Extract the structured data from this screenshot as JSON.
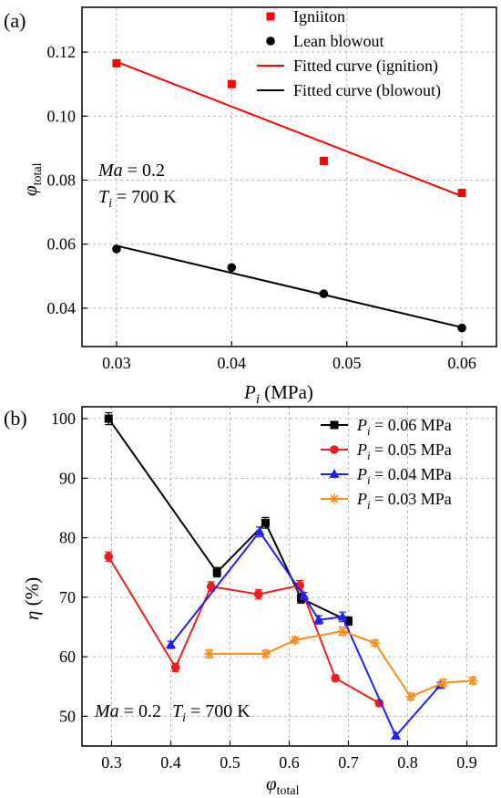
{
  "chart_data": [
    {
      "type": "scatter",
      "panel_label": "(a)",
      "xlabel_main": "P",
      "xlabel_sub": "i",
      "xlabel_unit": " (MPa)",
      "ylabel_main": "φ",
      "ylabel_sub": "total",
      "xlim": [
        0.027,
        0.063
      ],
      "ylim": [
        0.028,
        0.134
      ],
      "xticks": [
        0.03,
        0.04,
        0.05,
        0.06
      ],
      "xtick_labels": [
        "0.03",
        "0.04",
        "0.05",
        "0.06"
      ],
      "yticks": [
        0.04,
        0.06,
        0.08,
        0.1,
        0.12
      ],
      "ytick_labels": [
        "0.04",
        "0.06",
        "0.08",
        "0.10",
        "0.12"
      ],
      "grid": true,
      "legend_position": "top-right",
      "annotation": {
        "line1_var": "Ma",
        "line1_val": " = 0.2",
        "line2_var": "T",
        "line2_sub": "i",
        "line2_val": " = 700 K"
      },
      "series": [
        {
          "name": "Igniiton",
          "kind": "marker",
          "marker": "square",
          "color": "#ff0000",
          "x": [
            0.03,
            0.04,
            0.048,
            0.06
          ],
          "y": [
            0.1165,
            0.11,
            0.086,
            0.076
          ],
          "err": [
            0.0008,
            0.0008,
            0.0008,
            0.0008
          ]
        },
        {
          "name": "Lean blowout",
          "kind": "marker",
          "marker": "circle",
          "color": "#000000",
          "x": [
            0.03,
            0.04,
            0.048,
            0.06
          ],
          "y": [
            0.0585,
            0.0527,
            0.0445,
            0.0338
          ],
          "err": [
            0,
            0,
            0,
            0
          ]
        },
        {
          "name": "Fitted curve (ignition)",
          "kind": "line",
          "color": "#ff0000",
          "x": [
            0.03,
            0.06
          ],
          "y": [
            0.117,
            0.075
          ]
        },
        {
          "name": "Fitted curve (blowout)",
          "kind": "line",
          "color": "#000000",
          "x": [
            0.03,
            0.06
          ],
          "y": [
            0.0595,
            0.034
          ]
        }
      ]
    },
    {
      "type": "line",
      "panel_label": "(b)",
      "xlabel_main": "φ",
      "xlabel_sub": "total",
      "ylabel_main": "η",
      "ylabel_unit": " (%)",
      "xlim": [
        0.25,
        0.95
      ],
      "ylim": [
        45,
        102
      ],
      "xticks": [
        0.3,
        0.4,
        0.5,
        0.6,
        0.7,
        0.8,
        0.9
      ],
      "xtick_labels": [
        "0.3",
        "0.4",
        "0.5",
        "0.6",
        "0.7",
        "0.8",
        "0.9"
      ],
      "yticks": [
        50,
        60,
        70,
        80,
        90,
        100
      ],
      "ytick_labels": [
        "50",
        "60",
        "70",
        "80",
        "90",
        "100"
      ],
      "grid": true,
      "legend_position": "top-right",
      "annotation": {
        "line1_var": "Ma",
        "line1_val": " = 0.2",
        "line2_var": "T",
        "line2_sub": "i",
        "line2_val": " = 700 K"
      },
      "series": [
        {
          "name_var": "P",
          "name_sub": "i",
          "name_val": " = 0.06 MPa",
          "marker": "square",
          "color": "#000000",
          "x": [
            0.295,
            0.478,
            0.56,
            0.62,
            0.7
          ],
          "y": [
            100,
            74.2,
            82.5,
            69.8,
            66
          ],
          "err": [
            1.0,
            0.8,
            0.9,
            0.8,
            0.7
          ]
        },
        {
          "name_var": "P",
          "name_sub": "i",
          "name_val": " = 0.05 MPa",
          "marker": "circle",
          "color": "#ee1c1c",
          "x": [
            0.295,
            0.408,
            0.468,
            0.548,
            0.618,
            0.678,
            0.752
          ],
          "y": [
            76.8,
            58.2,
            71.8,
            70.5,
            72,
            56.4,
            52.2
          ],
          "err": [
            0.8,
            0.7,
            0.8,
            0.8,
            0.8,
            0.5,
            0.5
          ]
        },
        {
          "name_var": "P",
          "name_sub": "i",
          "name_val": " = 0.04 MPa",
          "marker": "triangle",
          "color": "#1f1fff",
          "x": [
            0.4,
            0.55,
            0.625,
            0.65,
            0.69,
            0.78,
            0.855
          ],
          "y": [
            62,
            81,
            70.2,
            66.2,
            66.7,
            46.7,
            55.2
          ],
          "err": [
            0.6,
            0.8,
            0.6,
            0.7,
            0.8,
            0.5,
            0.5
          ]
        },
        {
          "name_var": "P",
          "name_sub": "i",
          "name_val": " = 0.03 MPa",
          "marker": "star",
          "color": "#ff8c1a",
          "x": [
            0.465,
            0.56,
            0.61,
            0.69,
            0.745,
            0.805,
            0.86,
            0.91
          ],
          "y": [
            60.5,
            60.5,
            62.8,
            64.3,
            62.3,
            53.3,
            55.6,
            56
          ],
          "err": [
            0.7,
            0.6,
            0.5,
            0.7,
            0.5,
            0.6,
            0.6,
            0.6
          ]
        }
      ]
    }
  ]
}
